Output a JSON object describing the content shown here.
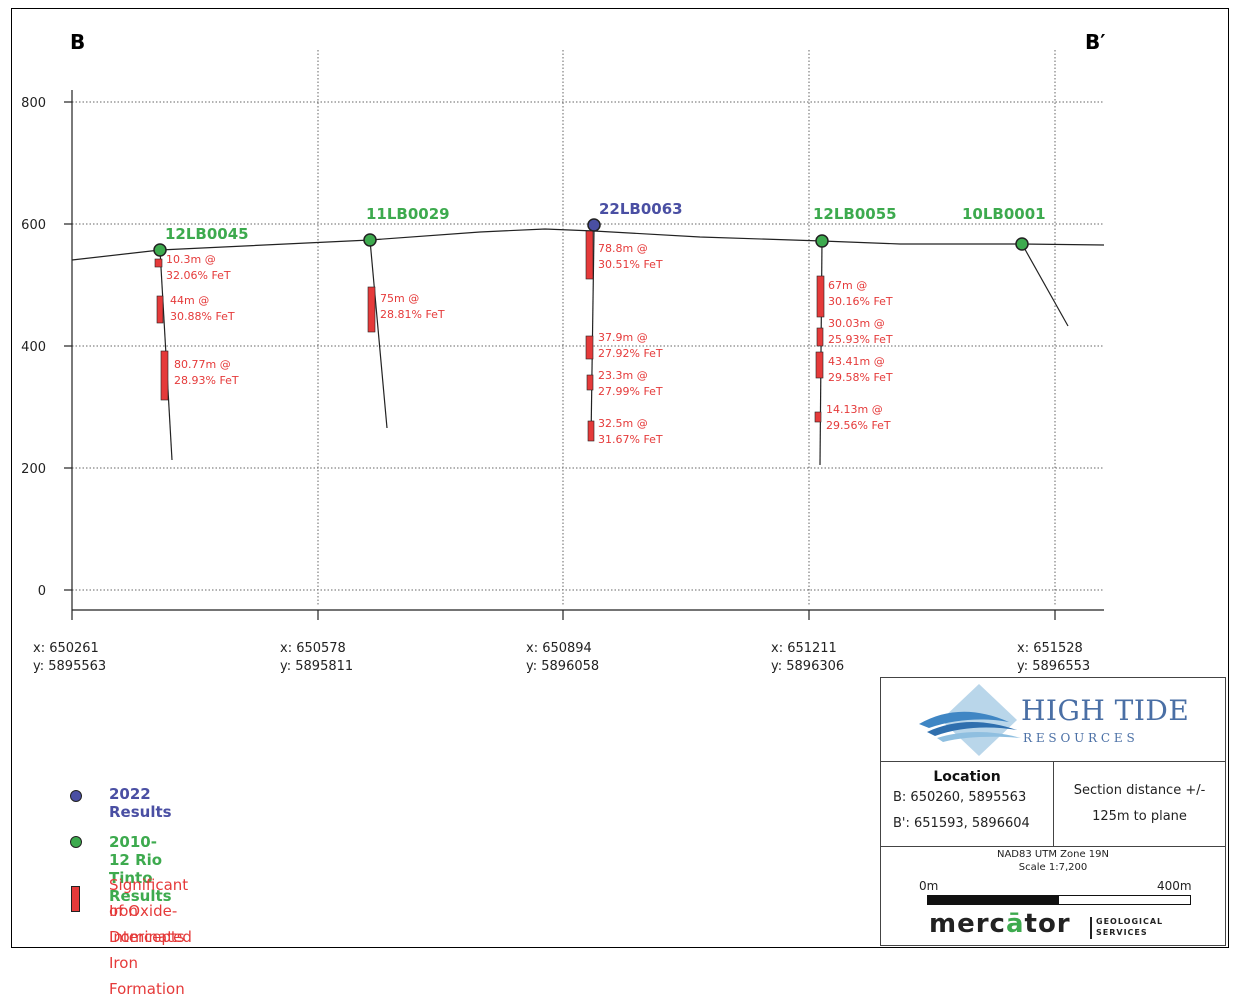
{
  "section": {
    "left_label": "B",
    "right_label": "B′",
    "elevation_ticks": [
      "800",
      "600",
      "400",
      "200",
      "0"
    ],
    "coords": [
      {
        "x": "x: 650261",
        "y": "y: 5895563"
      },
      {
        "x": "x: 650578",
        "y": "y: 5895811"
      },
      {
        "x": "x: 650894",
        "y": "y: 5896058"
      },
      {
        "x": "x: 651211",
        "y": "y: 5896306"
      },
      {
        "x": "x: 651528",
        "y": "y: 5896553"
      }
    ]
  },
  "holes": [
    {
      "name": "12LB0045",
      "type": "rio",
      "intercepts": [
        {
          "len": "10.3m @",
          "grade": "32.06% FeT"
        },
        {
          "len": "44m @",
          "grade": "30.88% FeT"
        },
        {
          "len": "80.77m @",
          "grade": "28.93% FeT"
        }
      ]
    },
    {
      "name": "11LB0029",
      "type": "rio",
      "intercepts": [
        {
          "len": "75m @",
          "grade": "28.81% FeT"
        }
      ]
    },
    {
      "name": "22LB0063",
      "type": "2022",
      "intercepts": [
        {
          "len": "78.8m @",
          "grade": "30.51% FeT"
        },
        {
          "len": "37.9m @",
          "grade": "27.92% FeT"
        },
        {
          "len": "23.3m @",
          "grade": "27.99% FeT"
        },
        {
          "len": "32.5m @",
          "grade": "31.67% FeT"
        }
      ]
    },
    {
      "name": "12LB0055",
      "type": "rio",
      "intercepts": [
        {
          "len": "67m @",
          "grade": "30.16% FeT"
        },
        {
          "len": "30.03m @",
          "grade": "25.93% FeT"
        },
        {
          "len": "43.41m @",
          "grade": "29.58% FeT"
        },
        {
          "len": "14.13m @",
          "grade": "29.56% FeT"
        }
      ]
    },
    {
      "name": "10LB0001",
      "type": "rio",
      "intercepts": []
    }
  ],
  "legend": {
    "item_2022": "2022 Results",
    "item_rio": "2010-12 Rio Tinto Results",
    "item_iron_line1": "Significant Iron Intercepts",
    "item_iron_line2": "of Oxide-Dominated Iron Formation"
  },
  "infobox": {
    "logo_line1": "HIGH TIDE",
    "logo_line2": "R E S O U R C E S",
    "location_title": "Location",
    "location_b": "B:  650260, 5895563",
    "location_b2": "B': 651593, 5896604",
    "section_distance_1": "Section distance +/-",
    "section_distance_2": "125m to plane",
    "projection": "NAD83 UTM Zone 19N",
    "scale": "Scale 1:7,200",
    "scale_start": "0m",
    "scale_end": "400m",
    "mercator_word_1": "merc",
    "mercator_word_2": "ā",
    "mercator_word_3": "tor",
    "mercator_sub_1": "GEOLOGICAL",
    "mercator_sub_2": "SERVICES"
  },
  "colors": {
    "green": "#3daa4e",
    "blue": "#4a4fa3",
    "red": "#e53a3a",
    "grid": "#666666",
    "logo_blue": "#3f86c4",
    "logo_text": "#4a6fa5"
  }
}
